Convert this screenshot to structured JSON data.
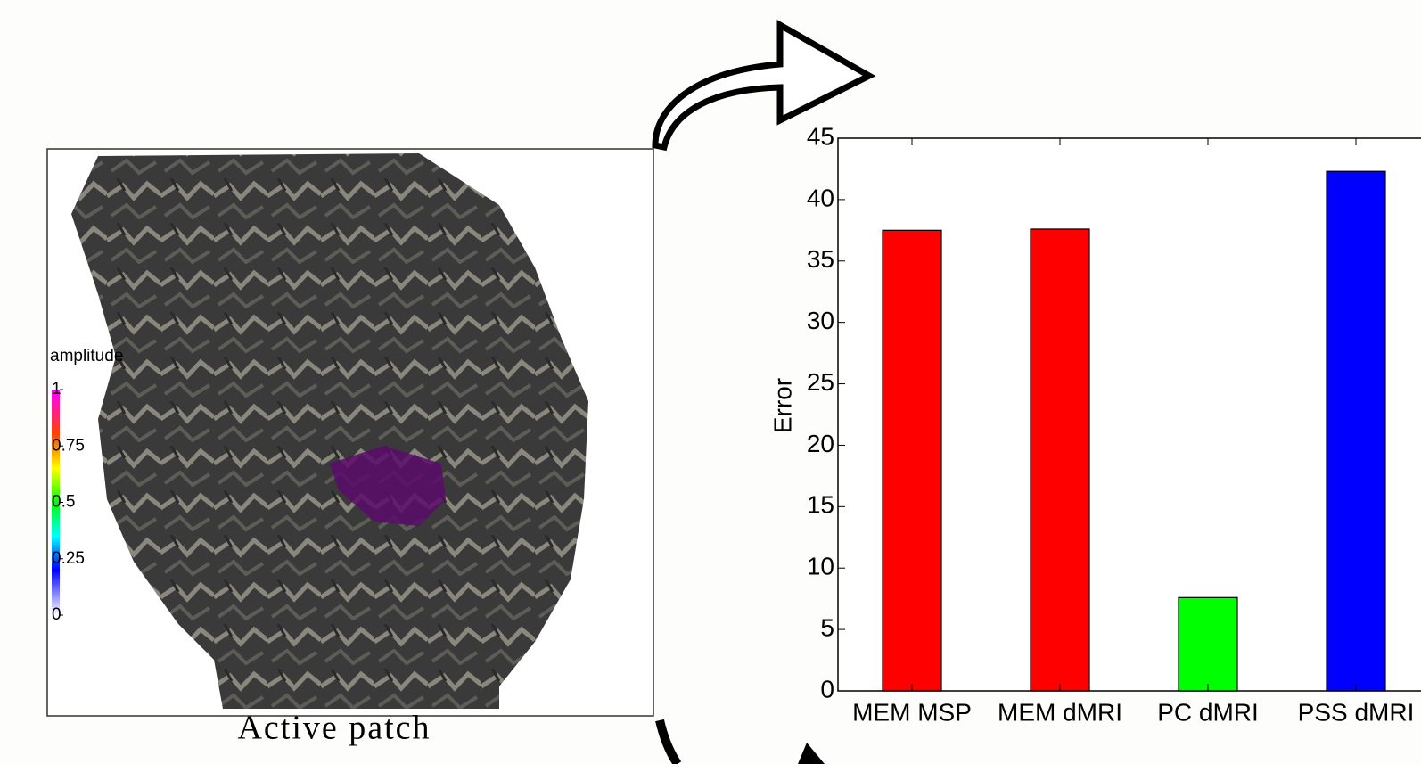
{
  "chart_data": {
    "type": "bar",
    "ylabel": "Error",
    "categories": [
      "MEM MSP",
      "MEM dMRI",
      "PC dMRI",
      "PSS dMRI"
    ],
    "values": [
      37.5,
      37.6,
      7.6,
      42.3
    ],
    "colors": [
      "#ff0000",
      "#ff0000",
      "#00ff00",
      "#0000ff"
    ],
    "ylim": [
      0,
      45
    ],
    "yticks": [
      0,
      5,
      10,
      15,
      20,
      25,
      30,
      35,
      40,
      45
    ]
  },
  "colorbar": {
    "title": "amplitude",
    "ticks": [
      0,
      0.25,
      0.5,
      0.75,
      1
    ]
  },
  "caption": "Active patch"
}
